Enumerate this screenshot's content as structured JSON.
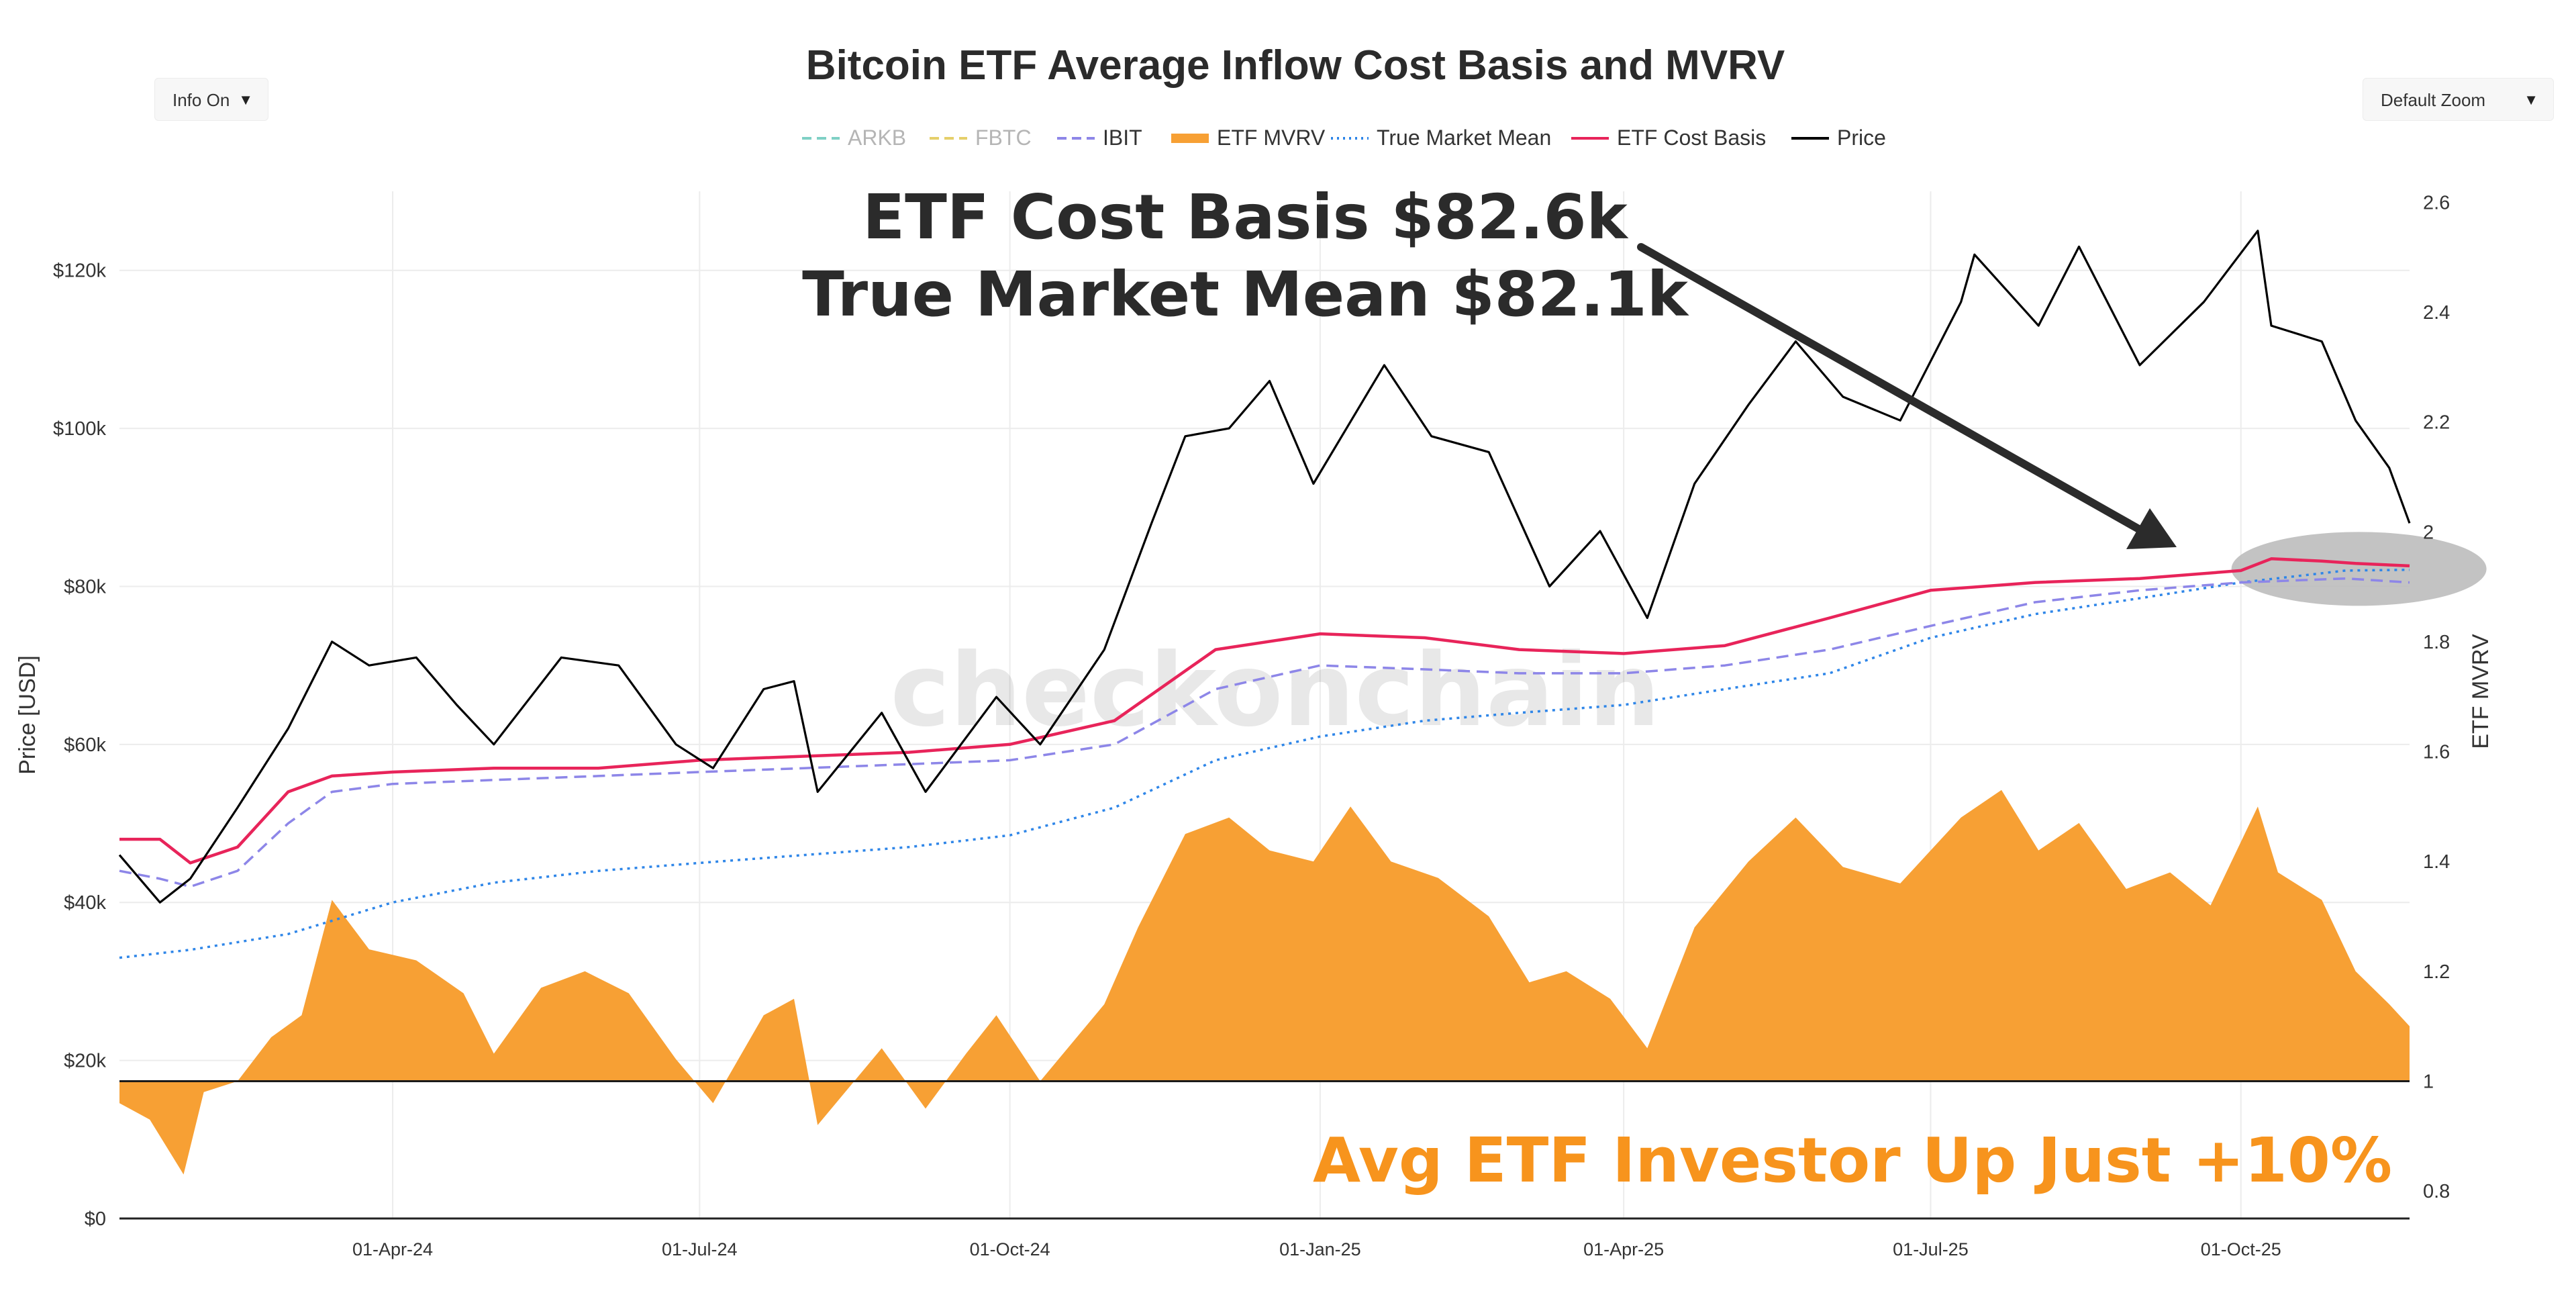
{
  "controls": {
    "info_label": "Info On",
    "zoom_label": "Default Zoom",
    "dropdown_glyph": "▼"
  },
  "watermark": "checkonchain",
  "annotations": {
    "headline_line1": "ETF Cost Basis $82.6k",
    "headline_line2": "True Market Mean $82.1k",
    "footer": "Avg ETF Investor Up Just +10%"
  },
  "colors": {
    "price": "#000000",
    "etf_cost_basis": "#e8245a",
    "true_market_mean": "#2f86e8",
    "ibit": "#8d86e8",
    "fbtc": "#e5cf6a",
    "arkb": "#7fd0c5",
    "mvrv_fill": "#f7a034",
    "title": "#2b2b2b",
    "headline": "#2b2b2b",
    "footer": "#f7941d",
    "highlight": "#c2c2c2"
  },
  "chart_data": {
    "type": "line",
    "title": "Bitcoin ETF Average Inflow Cost Basis and MVRV",
    "ylabel": "Price [USD]",
    "y2label": "ETF MVRV",
    "xlabel": "",
    "ylim": [
      0,
      130000
    ],
    "y2lim": [
      0.75,
      2.62
    ],
    "y_ticks": [
      0,
      20000,
      40000,
      60000,
      80000,
      100000,
      120000
    ],
    "y_tick_labels": [
      "$0",
      "$20k",
      "$40k",
      "$60k",
      "$80k",
      "$100k",
      "$120k"
    ],
    "y2_ticks": [
      0.8,
      1,
      1.2,
      1.4,
      1.6,
      1.8,
      2,
      2.2,
      2.4,
      2.6
    ],
    "y2_tick_labels": [
      "0.8",
      "1",
      "1.2",
      "1.4",
      "1.6",
      "1.8",
      "2",
      "2.2",
      "2.4",
      "2.6"
    ],
    "x_range": [
      "2024-01-11",
      "2025-11-20"
    ],
    "x_ticks": [
      "2024-04-01",
      "2024-07-01",
      "2024-10-01",
      "2025-01-01",
      "2025-04-01",
      "2025-07-01",
      "2025-10-01"
    ],
    "x_tick_labels": [
      "01-Apr-24",
      "01-Jul-24",
      "01-Oct-24",
      "01-Jan-25",
      "01-Apr-25",
      "01-Jul-25",
      "01-Oct-25"
    ],
    "legend": [
      "ARKB",
      "FBTC",
      "IBIT",
      "ETF MVRV",
      "True Market Mean",
      "ETF Cost Basis",
      "Price"
    ],
    "legend_placement": "top-center",
    "highlight_date": "2025-11-05",
    "series": [
      {
        "name": "Price",
        "axis": "y",
        "style": "solid",
        "x": [
          "2024-01-11",
          "2024-01-23",
          "2024-02-01",
          "2024-02-15",
          "2024-03-01",
          "2024-03-14",
          "2024-03-25",
          "2024-04-08",
          "2024-04-20",
          "2024-05-01",
          "2024-05-21",
          "2024-06-07",
          "2024-06-24",
          "2024-07-05",
          "2024-07-20",
          "2024-07-29",
          "2024-08-05",
          "2024-08-24",
          "2024-09-06",
          "2024-09-27",
          "2024-10-10",
          "2024-10-29",
          "2024-11-12",
          "2024-11-22",
          "2024-12-05",
          "2024-12-17",
          "2024-12-30",
          "2025-01-20",
          "2025-02-03",
          "2025-02-20",
          "2025-03-10",
          "2025-03-25",
          "2025-04-08",
          "2025-04-22",
          "2025-05-08",
          "2025-05-22",
          "2025-06-05",
          "2025-06-22",
          "2025-07-10",
          "2025-07-14",
          "2025-08-02",
          "2025-08-14",
          "2025-09-01",
          "2025-09-20",
          "2025-10-06",
          "2025-10-10",
          "2025-10-25",
          "2025-11-04",
          "2025-11-14",
          "2025-11-20"
        ],
        "y": [
          46000,
          40000,
          43000,
          52000,
          62000,
          73000,
          70000,
          71000,
          65000,
          60000,
          71000,
          70000,
          60000,
          57000,
          67000,
          68000,
          54000,
          64000,
          54000,
          66000,
          60000,
          72000,
          88000,
          99000,
          100000,
          106000,
          93000,
          108000,
          99000,
          97000,
          80000,
          87000,
          76000,
          93000,
          103000,
          111000,
          104000,
          101000,
          116000,
          122000,
          113000,
          123000,
          108000,
          116000,
          125000,
          113000,
          111000,
          101000,
          95000,
          88000
        ]
      },
      {
        "name": "ETF Cost Basis",
        "axis": "y",
        "style": "solid",
        "x": [
          "2024-01-11",
          "2024-01-23",
          "2024-02-01",
          "2024-02-15",
          "2024-03-01",
          "2024-03-14",
          "2024-04-01",
          "2024-05-01",
          "2024-06-01",
          "2024-07-01",
          "2024-08-01",
          "2024-09-01",
          "2024-10-01",
          "2024-11-01",
          "2024-12-01",
          "2025-01-01",
          "2025-02-01",
          "2025-03-01",
          "2025-04-01",
          "2025-05-01",
          "2025-06-01",
          "2025-07-01",
          "2025-08-01",
          "2025-09-01",
          "2025-10-01",
          "2025-10-10",
          "2025-10-25",
          "2025-11-04",
          "2025-11-20"
        ],
        "y": [
          48000,
          48000,
          45000,
          47000,
          54000,
          56000,
          56500,
          57000,
          57000,
          58000,
          58500,
          59000,
          60000,
          63000,
          72000,
          74000,
          73500,
          72000,
          71500,
          72500,
          76000,
          79500,
          80500,
          81000,
          82000,
          83500,
          83200,
          82900,
          82600
        ]
      },
      {
        "name": "IBIT",
        "axis": "y",
        "style": "dashed",
        "x": [
          "2024-01-11",
          "2024-01-23",
          "2024-02-01",
          "2024-02-15",
          "2024-03-01",
          "2024-03-14",
          "2024-04-01",
          "2024-05-01",
          "2024-06-01",
          "2024-07-01",
          "2024-08-01",
          "2024-09-01",
          "2024-10-01",
          "2024-11-01",
          "2024-12-01",
          "2025-01-01",
          "2025-02-01",
          "2025-03-01",
          "2025-04-01",
          "2025-05-01",
          "2025-06-01",
          "2025-07-01",
          "2025-08-01",
          "2025-09-01",
          "2025-10-01",
          "2025-11-01",
          "2025-11-20"
        ],
        "y": [
          44000,
          43000,
          42000,
          44000,
          50000,
          54000,
          55000,
          55500,
          56000,
          56500,
          57000,
          57500,
          58000,
          60000,
          67000,
          70000,
          69500,
          69000,
          69000,
          70000,
          72000,
          75000,
          78000,
          79500,
          80500,
          81000,
          80500
        ]
      },
      {
        "name": "True Market Mean",
        "axis": "y",
        "style": "dotted",
        "x": [
          "2024-01-11",
          "2024-02-01",
          "2024-03-01",
          "2024-04-01",
          "2024-05-01",
          "2024-06-01",
          "2024-07-01",
          "2024-08-01",
          "2024-09-01",
          "2024-10-01",
          "2024-11-01",
          "2024-12-01",
          "2025-01-01",
          "2025-02-01",
          "2025-03-01",
          "2025-04-01",
          "2025-05-01",
          "2025-06-01",
          "2025-07-01",
          "2025-08-01",
          "2025-09-01",
          "2025-10-01",
          "2025-11-01",
          "2025-11-20"
        ],
        "y": [
          33000,
          34000,
          36000,
          40000,
          42500,
          44000,
          45000,
          46000,
          47000,
          48500,
          52000,
          58000,
          61000,
          63000,
          64000,
          65000,
          67000,
          69000,
          73500,
          76500,
          78500,
          80500,
          82000,
          82100
        ]
      },
      {
        "name": "ETF MVRV",
        "axis": "y2",
        "style": "area",
        "baseline": 1,
        "x": [
          "2024-01-11",
          "2024-01-20",
          "2024-01-30",
          "2024-02-05",
          "2024-02-15",
          "2024-02-25",
          "2024-03-05",
          "2024-03-14",
          "2024-03-25",
          "2024-04-08",
          "2024-04-22",
          "2024-05-01",
          "2024-05-15",
          "2024-05-28",
          "2024-06-10",
          "2024-06-24",
          "2024-07-05",
          "2024-07-20",
          "2024-07-29",
          "2024-08-05",
          "2024-08-24",
          "2024-09-06",
          "2024-09-18",
          "2024-09-27",
          "2024-10-10",
          "2024-10-29",
          "2024-11-08",
          "2024-11-22",
          "2024-12-05",
          "2024-12-17",
          "2024-12-30",
          "2025-01-10",
          "2025-01-22",
          "2025-02-05",
          "2025-02-20",
          "2025-03-04",
          "2025-03-15",
          "2025-03-28",
          "2025-04-08",
          "2025-04-22",
          "2025-05-08",
          "2025-05-22",
          "2025-06-05",
          "2025-06-22",
          "2025-07-10",
          "2025-07-22",
          "2025-08-02",
          "2025-08-14",
          "2025-08-28",
          "2025-09-10",
          "2025-09-22",
          "2025-10-06",
          "2025-10-12",
          "2025-10-25",
          "2025-11-04",
          "2025-11-14",
          "2025-11-20"
        ],
        "y": [
          0.96,
          0.93,
          0.83,
          0.98,
          1.0,
          1.08,
          1.12,
          1.33,
          1.24,
          1.22,
          1.16,
          1.05,
          1.17,
          1.2,
          1.16,
          1.04,
          0.96,
          1.12,
          1.15,
          0.92,
          1.06,
          0.95,
          1.05,
          1.12,
          1.0,
          1.14,
          1.28,
          1.45,
          1.48,
          1.42,
          1.4,
          1.5,
          1.4,
          1.37,
          1.3,
          1.18,
          1.2,
          1.15,
          1.06,
          1.28,
          1.4,
          1.48,
          1.39,
          1.36,
          1.48,
          1.53,
          1.42,
          1.47,
          1.35,
          1.38,
          1.32,
          1.5,
          1.38,
          1.33,
          1.2,
          1.14,
          1.1
        ]
      }
    ]
  }
}
